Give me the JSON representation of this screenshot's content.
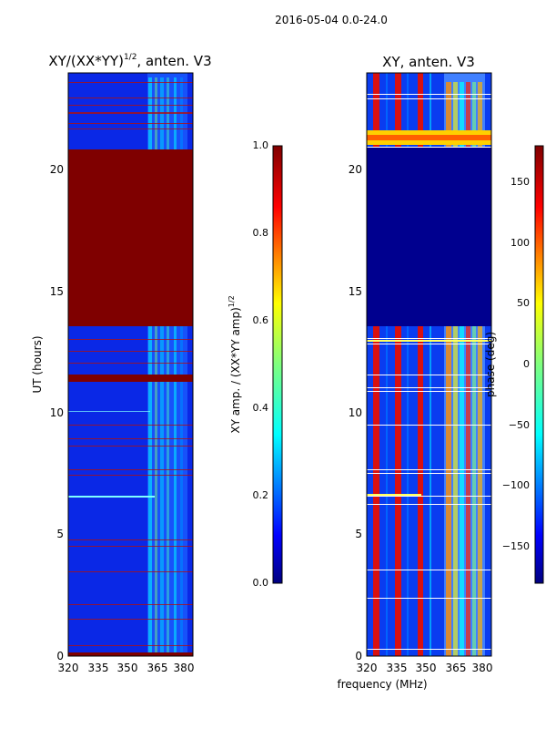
{
  "suptitle": "2016-05-04 0.0-24.0",
  "colors": {
    "jet": [
      "#00007f",
      "#0000ff",
      "#007fff",
      "#00ffff",
      "#7fff7f",
      "#ffff00",
      "#ff7f00",
      "#ff0000",
      "#7f0000"
    ],
    "background": "#ffffff",
    "axis": "#000000"
  },
  "chart_data": [
    {
      "type": "heatmap",
      "title_main": "XY/(XX*YY)",
      "title_sup": "1/2",
      "title_rest": ", anten. V3",
      "xlabel": "",
      "ylabel": "UT (hours)",
      "xlim": [
        320,
        383
      ],
      "ylim": [
        0,
        24
      ],
      "x_ticks": [
        320,
        335,
        350,
        365,
        380
      ],
      "y_ticks": [
        0,
        5,
        10,
        15,
        20
      ],
      "colorbar": {
        "label_main": "XY amp. / (XX*YY amp)",
        "label_sup": "1/2",
        "range": [
          0.0,
          1.0
        ],
        "ticks": [
          "0.0",
          "0.2",
          "0.4",
          "0.6",
          "0.8",
          "1.0"
        ],
        "tick_values": [
          0.0,
          0.2,
          0.4,
          0.6,
          0.8,
          1.0
        ]
      },
      "regions": [
        {
          "band": "UT 13.6-20.9 h",
          "value": 1.0,
          "note": "saturated (flagged) block across all frequencies"
        },
        {
          "band": "UT 11.2-11.5 h",
          "value": 1.0,
          "note": "saturated stripe"
        },
        {
          "band": "UT 0.0-0.1 h",
          "value": 1.0,
          "note": "saturated stripe"
        },
        {
          "band": "360-376 MHz",
          "value": 0.4,
          "note": "elevated amplitude (RFI) across unflagged hours"
        },
        {
          "band": "background",
          "value": 0.15,
          "note": "low amplitude"
        }
      ]
    },
    {
      "type": "heatmap",
      "title": "XY, anten. V3",
      "xlabel": "frequency (MHz)",
      "ylabel": "",
      "xlim": [
        320,
        383
      ],
      "ylim": [
        0,
        24
      ],
      "x_ticks": [
        320,
        335,
        350,
        365,
        380
      ],
      "y_ticks": [
        0,
        5,
        10,
        15,
        20
      ],
      "colorbar": {
        "label": "phase (deg)",
        "range": [
          -180,
          180
        ],
        "ticks": [
          "150",
          "100",
          "50",
          "0",
          "−50",
          "−100",
          "−150"
        ],
        "tick_values": [
          150,
          100,
          50,
          0,
          -50,
          -100,
          -150
        ]
      },
      "regions": [
        {
          "band": "UT 13.6-20.9 h",
          "value": -180,
          "note": "flagged block (uniform dark blue)"
        },
        {
          "band": "324-328, 333-336, 343-345, 349-351 MHz",
          "value": 150,
          "note": "red vertical stripes"
        },
        {
          "band": "UT 21-22 h",
          "value": 40,
          "note": "mixed yellow/red band"
        },
        {
          "band": "364-380 MHz",
          "value": 0,
          "note": "mixed phase (RFI)"
        },
        {
          "band": "background",
          "value": -150,
          "note": "blue background phase"
        }
      ]
    }
  ]
}
